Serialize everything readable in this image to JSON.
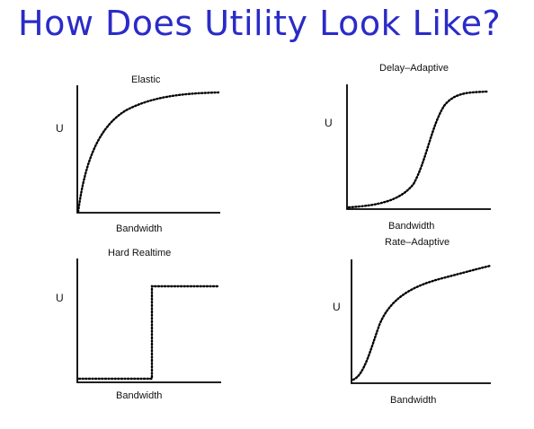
{
  "title": "How Does Utility Look Like?",
  "panels": [
    {
      "id": "elastic",
      "title": "Elastic",
      "ylabel": "U",
      "xlabel": "Bandwidth"
    },
    {
      "id": "delay-adaptive",
      "title": "Delay–Adaptive",
      "ylabel": "U",
      "xlabel": "Bandwidth"
    },
    {
      "id": "hard-realtime",
      "title": "Hard Realtime",
      "ylabel": "U",
      "xlabel": "Bandwidth"
    },
    {
      "id": "rate-adaptive",
      "title": "Rate–Adaptive",
      "ylabel": "U",
      "xlabel": "Bandwidth"
    }
  ]
}
